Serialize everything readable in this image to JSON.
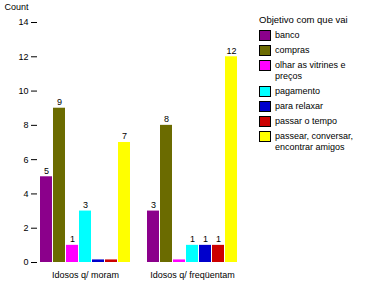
{
  "chart_data": {
    "type": "bar",
    "categories": [
      "Idosos q/ moram",
      "Idosos q/ freqüentam"
    ],
    "series": [
      {
        "name": "banco",
        "color": "#8B008B",
        "values": [
          5,
          3
        ],
        "value_labels": [
          "5",
          "3"
        ]
      },
      {
        "name": "compras",
        "color": "#6B6B00",
        "values": [
          9,
          8
        ],
        "value_labels": [
          "9",
          "8"
        ]
      },
      {
        "name": "olhar as vitrines e\npreços",
        "color": "#FF00FF",
        "values": [
          1,
          0.15
        ],
        "value_labels": [
          "1",
          null
        ]
      },
      {
        "name": "pagamento",
        "color": "#00FFFF",
        "values": [
          3,
          1
        ],
        "value_labels": [
          "3",
          "1"
        ]
      },
      {
        "name": "para relaxar",
        "color": "#0000CC",
        "values": [
          0.15,
          1
        ],
        "value_labels": [
          null,
          "1"
        ]
      },
      {
        "name": "passar o tempo",
        "color": "#CC0000",
        "values": [
          0.15,
          1
        ],
        "value_labels": [
          null,
          "1"
        ]
      },
      {
        "name": "passear, conversar,\nencontrar amigos",
        "color": "#FFFF00",
        "values": [
          7,
          12
        ],
        "value_labels": [
          "7",
          "12"
        ]
      }
    ],
    "ylabel": "Count",
    "legend_title": "Objetivo com que vai",
    "ylim": [
      0,
      14
    ],
    "yticks": [
      0,
      2,
      4,
      6,
      8,
      10,
      12,
      14
    ],
    "grid": false,
    "legend": "right",
    "data_labels": true
  }
}
